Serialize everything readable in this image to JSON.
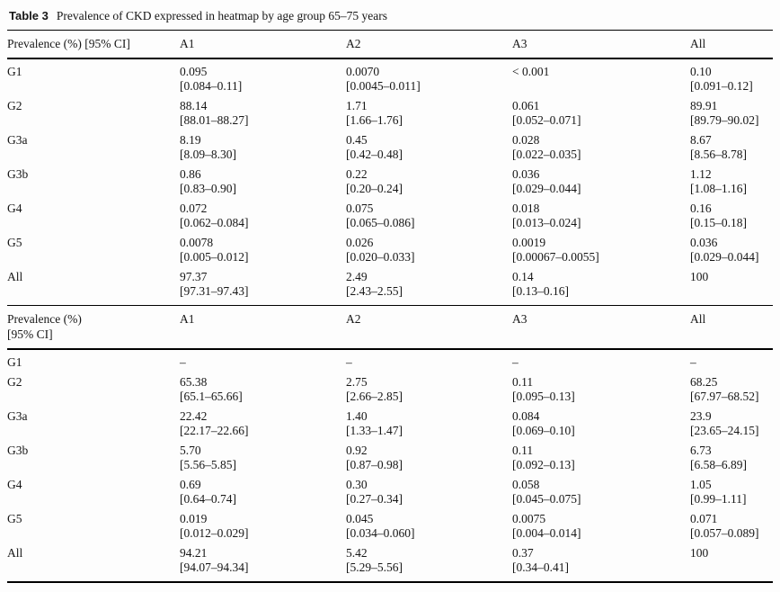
{
  "title": {
    "tag": "Table 3",
    "caption": "Prevalence of CKD expressed in heatmap by age group 65–75 years"
  },
  "sections": [
    {
      "header": {
        "label_col": "Prevalence (%) [95% CI]",
        "columns": [
          "A1",
          "A2",
          "A3",
          "All"
        ]
      },
      "rows": [
        {
          "label": "G1",
          "cells": [
            {
              "v": "0.095",
              "ci": "[0.084–0.11]"
            },
            {
              "v": "0.0070",
              "ci": "[0.0045–0.011]"
            },
            {
              "v": "< 0.001",
              "ci": ""
            },
            {
              "v": "0.10",
              "ci": "[0.091–0.12]"
            }
          ]
        },
        {
          "label": "G2",
          "cells": [
            {
              "v": "88.14",
              "ci": "[88.01–88.27]"
            },
            {
              "v": "1.71",
              "ci": "[1.66–1.76]"
            },
            {
              "v": "0.061",
              "ci": "[0.052–0.071]"
            },
            {
              "v": "89.91",
              "ci": "[89.79–90.02]"
            }
          ]
        },
        {
          "label": "G3a",
          "cells": [
            {
              "v": "8.19",
              "ci": "[8.09–8.30]"
            },
            {
              "v": "0.45",
              "ci": "[0.42–0.48]"
            },
            {
              "v": "0.028",
              "ci": "[0.022–0.035]"
            },
            {
              "v": "8.67",
              "ci": "[8.56–8.78]"
            }
          ]
        },
        {
          "label": "G3b",
          "cells": [
            {
              "v": "0.86",
              "ci": "[0.83–0.90]"
            },
            {
              "v": "0.22",
              "ci": "[0.20–0.24]"
            },
            {
              "v": "0.036",
              "ci": "[0.029–0.044]"
            },
            {
              "v": "1.12",
              "ci": "[1.08–1.16]"
            }
          ]
        },
        {
          "label": "G4",
          "cells": [
            {
              "v": "0.072",
              "ci": "[0.062–0.084]"
            },
            {
              "v": "0.075",
              "ci": "[0.065–0.086]"
            },
            {
              "v": "0.018",
              "ci": "[0.013–0.024]"
            },
            {
              "v": "0.16",
              "ci": "[0.15–0.18]"
            }
          ]
        },
        {
          "label": "G5",
          "cells": [
            {
              "v": "0.0078",
              "ci": "[0.005–0.012]"
            },
            {
              "v": "0.026",
              "ci": "[0.020–0.033]"
            },
            {
              "v": "0.0019",
              "ci": "[0.00067–0.0055]"
            },
            {
              "v": "0.036",
              "ci": "[0.029–0.044]"
            }
          ]
        },
        {
          "label": "All",
          "cells": [
            {
              "v": "97.37",
              "ci": "[97.31–97.43]"
            },
            {
              "v": "2.49",
              "ci": "[2.43–2.55]"
            },
            {
              "v": "0.14",
              "ci": "[0.13–0.16]"
            },
            {
              "v": "100",
              "ci": ""
            }
          ]
        }
      ]
    },
    {
      "header": {
        "label_col": "Prevalence (%)\n[95% CI]",
        "columns": [
          "A1",
          "A2",
          "A3",
          "All"
        ]
      },
      "rows": [
        {
          "label": "G1",
          "cells": [
            {
              "v": "–",
              "ci": ""
            },
            {
              "v": "–",
              "ci": ""
            },
            {
              "v": "–",
              "ci": ""
            },
            {
              "v": "–",
              "ci": ""
            }
          ]
        },
        {
          "label": "G2",
          "cells": [
            {
              "v": "65.38",
              "ci": "[65.1–65.66]"
            },
            {
              "v": "2.75",
              "ci": "[2.66–2.85]"
            },
            {
              "v": "0.11",
              "ci": "[0.095–0.13]"
            },
            {
              "v": "68.25",
              "ci": "[67.97–68.52]"
            }
          ]
        },
        {
          "label": "G3a",
          "cells": [
            {
              "v": "22.42",
              "ci": "[22.17–22.66]"
            },
            {
              "v": "1.40",
              "ci": "[1.33–1.47]"
            },
            {
              "v": "0.084",
              "ci": "[0.069–0.10]"
            },
            {
              "v": "23.9",
              "ci": "[23.65–24.15]"
            }
          ]
        },
        {
          "label": "G3b",
          "cells": [
            {
              "v": "5.70",
              "ci": "[5.56–5.85]"
            },
            {
              "v": "0.92",
              "ci": "[0.87–0.98]"
            },
            {
              "v": "0.11",
              "ci": "[0.092–0.13]"
            },
            {
              "v": "6.73",
              "ci": "[6.58–6.89]"
            }
          ]
        },
        {
          "label": "G4",
          "cells": [
            {
              "v": "0.69",
              "ci": "[0.64–0.74]"
            },
            {
              "v": "0.30",
              "ci": "[0.27–0.34]"
            },
            {
              "v": "0.058",
              "ci": "[0.045–0.075]"
            },
            {
              "v": "1.05",
              "ci": "[0.99–1.11]"
            }
          ]
        },
        {
          "label": "G5",
          "cells": [
            {
              "v": "0.019",
              "ci": "[0.012–0.029]"
            },
            {
              "v": "0.045",
              "ci": "[0.034–0.060]"
            },
            {
              "v": "0.0075",
              "ci": "[0.004–0.014]"
            },
            {
              "v": "0.071",
              "ci": "[0.057–0.089]"
            }
          ]
        },
        {
          "label": "All",
          "cells": [
            {
              "v": "94.21",
              "ci": "[94.07–94.34]"
            },
            {
              "v": "5.42",
              "ci": "[5.29–5.56]"
            },
            {
              "v": "0.37",
              "ci": "[0.34–0.41]"
            },
            {
              "v": "100",
              "ci": ""
            }
          ]
        }
      ]
    }
  ],
  "colors": {
    "text": "#161616",
    "rule": "#000000",
    "background": "#fdfdfd"
  }
}
